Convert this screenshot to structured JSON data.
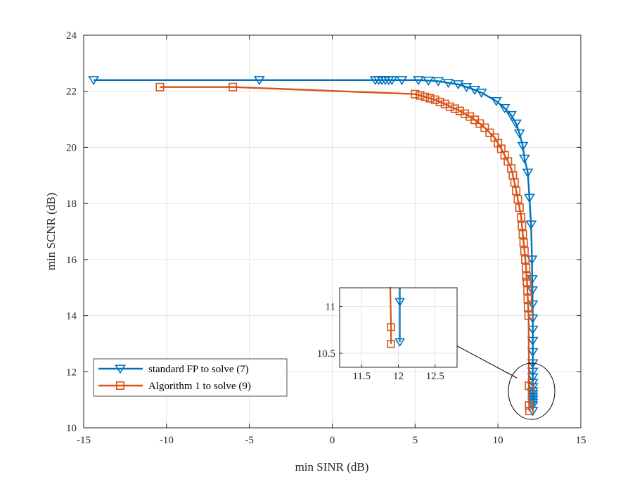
{
  "chart_data": {
    "type": "line",
    "xlabel": "min SINR (dB)",
    "ylabel": "min SCNR (dB)",
    "xlim": [
      -15,
      15
    ],
    "ylim": [
      10,
      24
    ],
    "xticks": [
      "-15",
      "-10",
      "-5",
      "0",
      "5",
      "10",
      "15"
    ],
    "yticks": [
      "10",
      "12",
      "14",
      "16",
      "18",
      "20",
      "22",
      "24"
    ],
    "grid": true,
    "legend_position": "lower-left",
    "series": [
      {
        "name": "standard FP to solve (7)",
        "color": "#0072BD",
        "marker": "triangle-down",
        "x": [
          -14.4,
          -4.4,
          2.6,
          2.8,
          3.0,
          3.2,
          3.4,
          3.6,
          4.2,
          5.2,
          5.8,
          6.4,
          7.0,
          7.6,
          8.1,
          8.6,
          9.0,
          9.9,
          10.4,
          10.8,
          11.1,
          11.3,
          11.5,
          11.6,
          11.8,
          11.9,
          12.0,
          12.05,
          12.07,
          12.08,
          12.09,
          12.1,
          12.1,
          12.1,
          12.1,
          12.1,
          12.1,
          12.1,
          12.1,
          12.1,
          12.1,
          12.1,
          12.1,
          12.1,
          12.1,
          12.1,
          12.1
        ],
        "y": [
          22.4,
          22.4,
          22.4,
          22.4,
          22.4,
          22.4,
          22.4,
          22.4,
          22.4,
          22.4,
          22.38,
          22.36,
          22.3,
          22.25,
          22.15,
          22.05,
          21.95,
          21.65,
          21.4,
          21.15,
          20.85,
          20.5,
          20.05,
          19.6,
          19.1,
          18.2,
          17.25,
          16.0,
          15.3,
          14.9,
          14.4,
          13.9,
          13.5,
          13.1,
          12.7,
          12.3,
          12.0,
          11.8,
          11.6,
          11.45,
          11.3,
          11.2,
          11.1,
          11.0,
          10.9,
          10.8,
          10.6
        ]
      },
      {
        "name": "Algorithm 1 to solve (9)",
        "color": "#D95319",
        "marker": "square",
        "x": [
          -10.4,
          -6.0,
          5.0,
          5.3,
          5.6,
          5.9,
          6.2,
          6.5,
          6.8,
          7.1,
          7.4,
          7.7,
          8.0,
          8.3,
          8.6,
          8.9,
          9.2,
          9.5,
          9.8,
          10.0,
          10.2,
          10.4,
          10.6,
          10.8,
          10.9,
          11.0,
          11.1,
          11.2,
          11.3,
          11.4,
          11.45,
          11.5,
          11.55,
          11.6,
          11.65,
          11.7,
          11.72,
          11.75,
          11.78,
          11.8,
          11.82,
          11.85,
          11.87,
          11.88,
          11.9
        ],
        "y": [
          22.15,
          22.15,
          21.9,
          21.85,
          21.8,
          21.75,
          21.7,
          21.62,
          21.55,
          21.45,
          21.38,
          21.3,
          21.2,
          21.1,
          20.98,
          20.85,
          20.7,
          20.52,
          20.35,
          20.15,
          19.95,
          19.72,
          19.5,
          19.25,
          19.0,
          18.75,
          18.45,
          18.15,
          17.85,
          17.5,
          17.2,
          16.9,
          16.6,
          16.3,
          16.0,
          15.7,
          15.4,
          15.2,
          14.9,
          14.6,
          14.3,
          14.0,
          11.5,
          10.8,
          10.6
        ]
      }
    ],
    "inset": {
      "xlim": [
        11.2,
        12.8
      ],
      "ylim": [
        10.35,
        11.2
      ],
      "xticks": [
        "11.5",
        "12",
        "12.5"
      ],
      "yticks": [
        "10.5",
        "11"
      ],
      "series": [
        {
          "name": "standard FP to solve (7)",
          "x": [
            12.02,
            12.02,
            12.02,
            12.02
          ],
          "y": [
            11.25,
            11.2,
            11.05,
            10.62
          ]
        },
        {
          "name": "Algorithm 1 to solve (9)",
          "x": [
            11.88,
            11.89,
            11.9,
            11.9
          ],
          "y": [
            11.25,
            11.2,
            10.78,
            10.6
          ]
        }
      ]
    },
    "annotation": "arrow from the zoomed region near (12, 10.7) to the inset"
  }
}
